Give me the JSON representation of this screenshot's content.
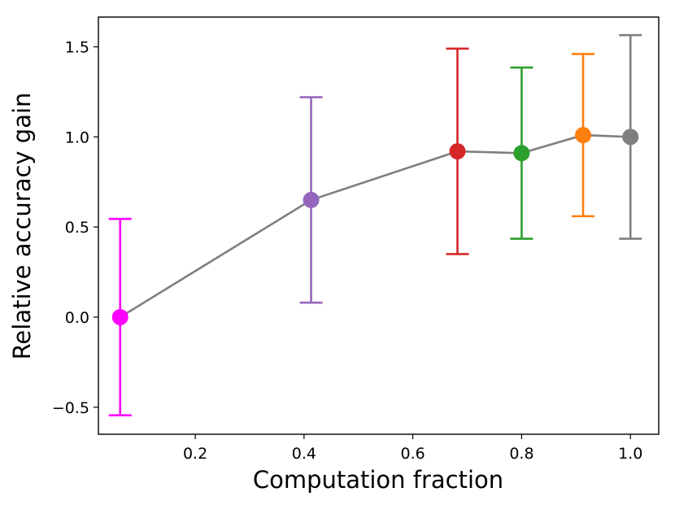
{
  "chart_data": {
    "type": "scatter",
    "title": "",
    "xlabel": "Computation fraction",
    "ylabel": "Relative accuracy gain",
    "xlim": [
      0.022,
      1.052
    ],
    "ylim": [
      -0.65,
      1.665
    ],
    "xticks": [
      0.2,
      0.4,
      0.6,
      0.8,
      1.0
    ],
    "xtick_labels": [
      "0.2",
      "0.4",
      "0.6",
      "0.8",
      "1.0"
    ],
    "yticks": [
      -0.5,
      0.0,
      0.5,
      1.0,
      1.5
    ],
    "ytick_labels": [
      "−0.5",
      "0.0",
      "0.5",
      "1.0",
      "1.5"
    ],
    "grid": false,
    "line_color": "#808080",
    "points": [
      {
        "x": 0.062,
        "y": 0.0,
        "lower": -0.545,
        "upper": 0.545,
        "color": "#ff00ff"
      },
      {
        "x": 0.413,
        "y": 0.65,
        "lower": 0.08,
        "upper": 1.22,
        "color": "#9467bd"
      },
      {
        "x": 0.682,
        "y": 0.92,
        "lower": 0.35,
        "upper": 1.49,
        "color": "#d62728"
      },
      {
        "x": 0.8,
        "y": 0.91,
        "lower": 0.435,
        "upper": 1.385,
        "color": "#2ca02c"
      },
      {
        "x": 0.913,
        "y": 1.01,
        "lower": 0.56,
        "upper": 1.46,
        "color": "#ff7f0e"
      },
      {
        "x": 1.0,
        "y": 1.0,
        "lower": 0.435,
        "upper": 1.565,
        "color": "#7f7f7f"
      }
    ]
  }
}
